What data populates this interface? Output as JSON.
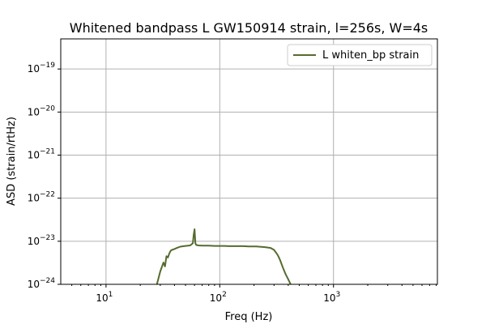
{
  "chart_data": {
    "type": "line",
    "title": "Whitened bandpass L GW150914 strain, l=256s, W=4s",
    "xlabel": "Freq (Hz)",
    "ylabel": "ASD (strain/rtHz)",
    "xscale": "log",
    "yscale": "log",
    "xlim": [
      4,
      8192
    ],
    "ylim": [
      1e-24,
      5e-19
    ],
    "grid": true,
    "legend_position": "top-right",
    "line_color": "#556b2f",
    "x_ticks": [
      {
        "base": "10",
        "exp": "1",
        "value": 10
      },
      {
        "base": "10",
        "exp": "2",
        "value": 100
      },
      {
        "base": "10",
        "exp": "3",
        "value": 1000
      }
    ],
    "y_ticks": [
      {
        "base": "10",
        "exp": "−24",
        "value": 1e-24
      },
      {
        "base": "10",
        "exp": "−23",
        "value": 1e-23
      },
      {
        "base": "10",
        "exp": "−22",
        "value": 1e-22
      },
      {
        "base": "10",
        "exp": "−21",
        "value": 1e-21
      },
      {
        "base": "10",
        "exp": "−20",
        "value": 1e-20
      },
      {
        "base": "10",
        "exp": "−19",
        "value": 1e-19
      }
    ],
    "series": [
      {
        "name": "L whiten_bp strain",
        "x": [
          28,
          30,
          32,
          33,
          34,
          35,
          36,
          37,
          38,
          40,
          42,
          45,
          50,
          55,
          58,
          59,
          60,
          61,
          62,
          65,
          70,
          80,
          90,
          100,
          110,
          120,
          140,
          160,
          180,
          200,
          210,
          220,
          250,
          280,
          300,
          320,
          330,
          340,
          360,
          380,
          400,
          420
        ],
        "y": [
          1e-24,
          2e-24,
          3.2e-24,
          2.6e-24,
          4.5e-24,
          4.2e-24,
          5.2e-24,
          6e-24,
          6.3e-24,
          6.6e-24,
          7e-24,
          7.5e-24,
          7.8e-24,
          8e-24,
          9e-24,
          1.4e-23,
          1.9e-23,
          9e-24,
          8.2e-24,
          8e-24,
          7.9e-24,
          7.9e-24,
          7.8e-24,
          7.8e-24,
          7.8e-24,
          7.7e-24,
          7.7e-24,
          7.7e-24,
          7.6e-24,
          7.6e-24,
          7.6e-24,
          7.5e-24,
          7.3e-24,
          7e-24,
          6.3e-24,
          5e-24,
          4.3e-24,
          3.6e-24,
          2.4e-24,
          1.7e-24,
          1.3e-24,
          1e-24
        ]
      }
    ]
  }
}
